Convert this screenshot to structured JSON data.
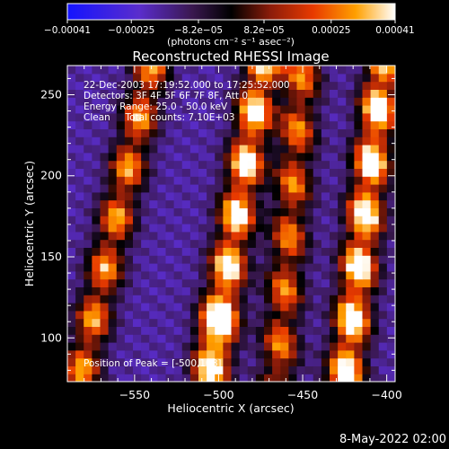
{
  "chart_data": {
    "type": "heatmap",
    "title": "Reconstructed RHESSI Image",
    "xlabel": "Heliocentric X (arcsec)",
    "ylabel": "Heliocentric Y (arcsec)",
    "xlim": [
      -590,
      -395
    ],
    "ylim": [
      73,
      268
    ],
    "x_ticks": [
      -550,
      -500,
      -450,
      -400
    ],
    "x_tick_labels": [
      "−550",
      "−500",
      "−450",
      "−400"
    ],
    "y_ticks": [
      100,
      150,
      200,
      250
    ],
    "y_tick_labels": [
      "100",
      "150",
      "200",
      "250"
    ],
    "colorbar": {
      "range": [
        -0.00041,
        0.00041
      ],
      "ticks": [
        -0.00041,
        -0.00025,
        -8.2e-05,
        8.2e-05,
        0.00025,
        0.00041
      ],
      "tick_labels": [
        "−0.00041",
        "−0.00025",
        "−8.2e−05",
        "8.2e−05",
        "0.00025",
        "0.00041"
      ],
      "unit_label": "(photons cm⁻² s⁻¹ asec⁻²)"
    },
    "annotations": [
      "22-Dec-2003 17:19:52.000 to 17:25:52.000",
      "Detectors: 3F 4F 5F 6F 7F 8F, Att 0",
      "Energy Range: 25.0 - 50.0 keV",
      "Clean     Total counts: 7.10E+03"
    ],
    "peak_label": "Position of Peak = [-500,108]",
    "peak": [
      -500,
      108
    ],
    "bands": [
      {
        "x_at_bottom": -583,
        "x_at_top": -540,
        "level": 0.65
      },
      {
        "x_at_bottom": -506,
        "x_at_top": -474,
        "level": 0.85
      },
      {
        "x_at_bottom": -465,
        "x_at_top": -450,
        "level": 0.6
      },
      {
        "x_at_bottom": -425,
        "x_at_top": -402,
        "level": 0.9
      }
    ],
    "grid": false
  },
  "footer": {
    "timestamp": "8-May-2022 02:00"
  }
}
